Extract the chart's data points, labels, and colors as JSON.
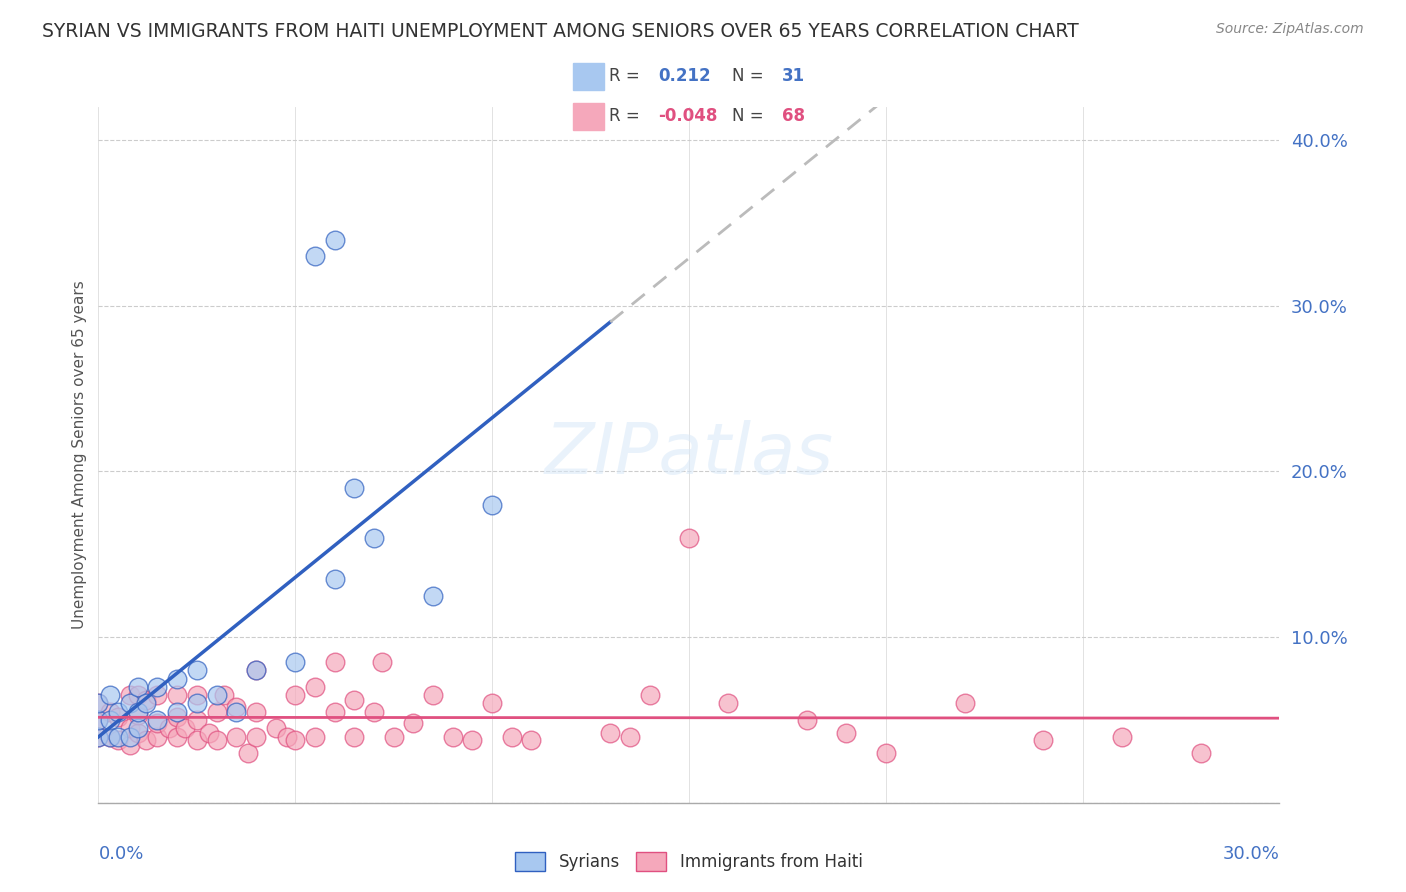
{
  "title": "SYRIAN VS IMMIGRANTS FROM HAITI UNEMPLOYMENT AMONG SENIORS OVER 65 YEARS CORRELATION CHART",
  "source": "Source: ZipAtlas.com",
  "ylabel": "Unemployment Among Seniors over 65 years",
  "xlim": [
    0.0,
    0.3
  ],
  "ylim": [
    0.0,
    0.42
  ],
  "yticks": [
    0.0,
    0.1,
    0.2,
    0.3,
    0.4
  ],
  "ytick_labels": [
    "",
    "10.0%",
    "20.0%",
    "30.0%",
    "40.0%"
  ],
  "xticks": [
    0.0,
    0.05,
    0.1,
    0.15,
    0.2,
    0.25,
    0.3
  ],
  "legend_R1": "0.212",
  "legend_N1": "31",
  "legend_R2": "-0.048",
  "legend_N2": "68",
  "color_syrian": "#A8C8F0",
  "color_haiti": "#F5A8BB",
  "color_blue_line": "#3060C0",
  "color_pink_line": "#E05080",
  "color_dashed": "#BBBBBB",
  "syrians_x": [
    0.0,
    0.0,
    0.0,
    0.003,
    0.003,
    0.003,
    0.005,
    0.005,
    0.008,
    0.008,
    0.01,
    0.01,
    0.01,
    0.012,
    0.015,
    0.015,
    0.02,
    0.02,
    0.025,
    0.025,
    0.03,
    0.035,
    0.04,
    0.05,
    0.055,
    0.06,
    0.06,
    0.065,
    0.07,
    0.085,
    0.1
  ],
  "syrians_y": [
    0.04,
    0.05,
    0.06,
    0.04,
    0.05,
    0.065,
    0.04,
    0.055,
    0.04,
    0.06,
    0.045,
    0.055,
    0.07,
    0.06,
    0.05,
    0.07,
    0.055,
    0.075,
    0.06,
    0.08,
    0.065,
    0.055,
    0.08,
    0.085,
    0.33,
    0.34,
    0.135,
    0.19,
    0.16,
    0.125,
    0.18
  ],
  "haiti_x": [
    0.0,
    0.0,
    0.0,
    0.003,
    0.003,
    0.005,
    0.005,
    0.008,
    0.008,
    0.008,
    0.01,
    0.01,
    0.01,
    0.012,
    0.012,
    0.015,
    0.015,
    0.015,
    0.018,
    0.02,
    0.02,
    0.02,
    0.022,
    0.025,
    0.025,
    0.025,
    0.028,
    0.03,
    0.03,
    0.032,
    0.035,
    0.035,
    0.038,
    0.04,
    0.04,
    0.04,
    0.045,
    0.048,
    0.05,
    0.05,
    0.055,
    0.055,
    0.06,
    0.06,
    0.065,
    0.065,
    0.07,
    0.072,
    0.075,
    0.08,
    0.085,
    0.09,
    0.095,
    0.1,
    0.105,
    0.11,
    0.13,
    0.135,
    0.14,
    0.15,
    0.16,
    0.18,
    0.19,
    0.2,
    0.22,
    0.24,
    0.26,
    0.28
  ],
  "haiti_y": [
    0.04,
    0.05,
    0.06,
    0.04,
    0.055,
    0.038,
    0.052,
    0.035,
    0.045,
    0.065,
    0.042,
    0.053,
    0.065,
    0.038,
    0.062,
    0.04,
    0.048,
    0.065,
    0.045,
    0.04,
    0.052,
    0.065,
    0.045,
    0.038,
    0.05,
    0.065,
    0.042,
    0.038,
    0.055,
    0.065,
    0.04,
    0.058,
    0.03,
    0.04,
    0.055,
    0.08,
    0.045,
    0.04,
    0.038,
    0.065,
    0.04,
    0.07,
    0.055,
    0.085,
    0.04,
    0.062,
    0.055,
    0.085,
    0.04,
    0.048,
    0.065,
    0.04,
    0.038,
    0.06,
    0.04,
    0.038,
    0.042,
    0.04,
    0.065,
    0.16,
    0.06,
    0.05,
    0.042,
    0.03,
    0.06,
    0.038,
    0.04,
    0.03
  ]
}
